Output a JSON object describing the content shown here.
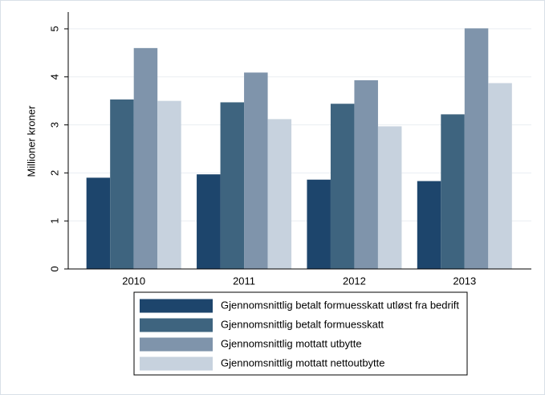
{
  "chart_data": {
    "type": "bar",
    "y_label": "Millioner kroner",
    "categories": [
      "2010",
      "2011",
      "2012",
      "2013"
    ],
    "series": [
      {
        "name": "Gjennomsnittlig betalt formuesskatt utløst fra bedrift",
        "color": "#1d456c",
        "values": [
          1.9,
          1.97,
          1.86,
          1.83
        ]
      },
      {
        "name": "Gjennomsnittlig betalt formuesskatt",
        "color": "#3e647f",
        "values": [
          3.53,
          3.47,
          3.44,
          3.22
        ]
      },
      {
        "name": "Gjennomsnittlig mottatt utbytte",
        "color": "#7f94ab",
        "values": [
          4.6,
          4.09,
          3.93,
          5.01
        ]
      },
      {
        "name": "Gjennomsnittlig mottatt nettoutbytte",
        "color": "#c7d2de",
        "values": [
          3.5,
          3.12,
          2.97,
          3.87
        ]
      }
    ],
    "ylim": [
      0,
      5.35
    ],
    "yticks": [
      0,
      1,
      2,
      3,
      4,
      5
    ],
    "grid": true
  }
}
